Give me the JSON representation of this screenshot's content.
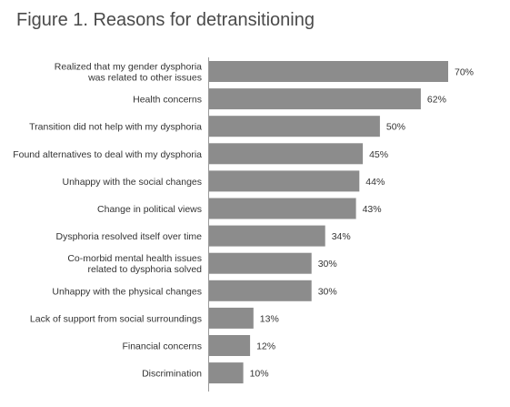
{
  "chart_data": {
    "type": "bar",
    "orientation": "horizontal",
    "title": "Figure 1. Reasons for detransitioning",
    "xlabel": "",
    "ylabel": "",
    "xlim": [
      0,
      70
    ],
    "grid": false,
    "legend": "none",
    "bar_color": "#8c8c8c",
    "value_suffix": "%",
    "categories": [
      [
        "Realized that my gender dysphoria",
        "was related to other issues"
      ],
      [
        "Health concerns"
      ],
      [
        "Transition did not help with my dysphoria"
      ],
      [
        "Found alternatives to deal with my dysphoria"
      ],
      [
        "Unhappy with the social changes"
      ],
      [
        "Change in political views"
      ],
      [
        "Dysphoria resolved itself over time"
      ],
      [
        "Co-morbid mental health issues",
        "related to dysphoria solved"
      ],
      [
        "Unhappy with the physical changes"
      ],
      [
        "Lack of support from social surroundings"
      ],
      [
        "Financial concerns"
      ],
      [
        "Discrimination"
      ]
    ],
    "values": [
      70,
      62,
      50,
      45,
      44,
      43,
      34,
      30,
      30,
      13,
      12,
      10
    ]
  }
}
